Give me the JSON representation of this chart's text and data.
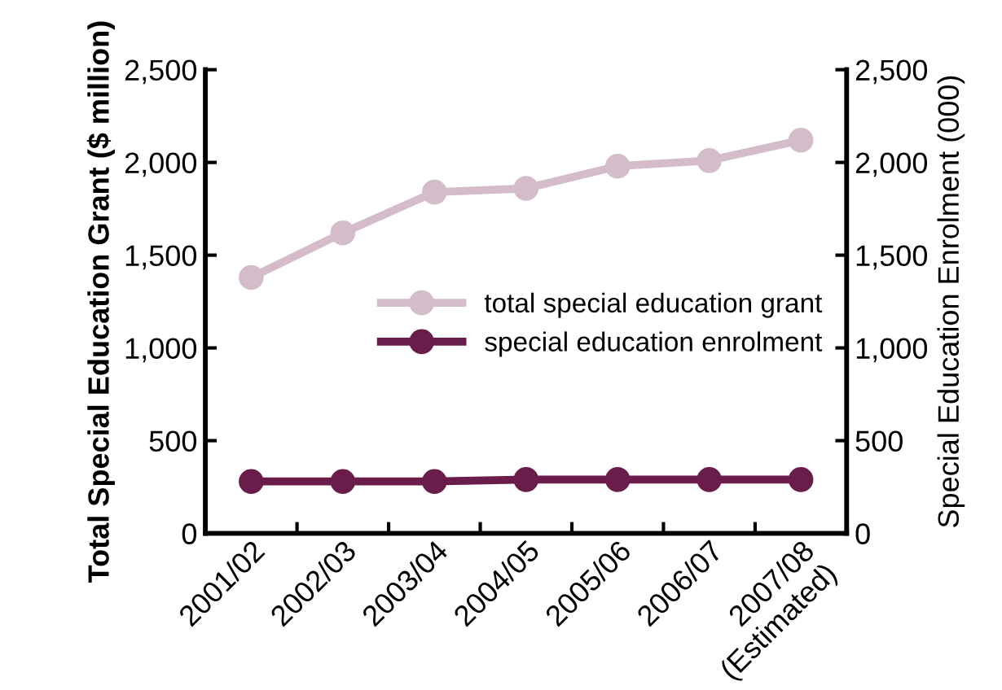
{
  "chart_data": {
    "type": "line",
    "ylabel": "Total Special Education Grant ($ million)",
    "y2label": "Special Education Enrolment (000)",
    "categories": [
      "2001/02",
      "2002/03",
      "2003/04",
      "2004/05",
      "2005/06",
      "2006/07",
      "2007/08\n(Estimated)"
    ],
    "series": [
      {
        "name": "total special education grant",
        "color": "#d4bccb",
        "values": [
          1380,
          1620,
          1840,
          1860,
          1980,
          2010,
          2120
        ]
      },
      {
        "name": "special education enrolment",
        "color": "#6a1d4a",
        "values": [
          280,
          280,
          280,
          290,
          290,
          290,
          290
        ]
      }
    ],
    "ylim": [
      0,
      2500
    ],
    "yticks": [
      0,
      {
        "value": 500,
        "label": "500"
      },
      {
        "value": 1000,
        "label": "1,000"
      },
      {
        "value": 1500,
        "label": "1,500"
      },
      {
        "value": 2000,
        "label": "2,000"
      },
      {
        "value": 2500,
        "label": "2,500"
      }
    ],
    "y2lim": [
      0,
      2500
    ],
    "y2ticks": [
      0,
      {
        "value": 500,
        "label": "500"
      },
      {
        "value": 1000,
        "label": "1,000"
      },
      {
        "value": 1500,
        "label": "1,500"
      },
      {
        "value": 2000,
        "label": "2,000"
      },
      {
        "value": 2500,
        "label": "2,500"
      }
    ],
    "marker": "circle",
    "line_style": "solid",
    "grid": false,
    "legend": "right"
  }
}
